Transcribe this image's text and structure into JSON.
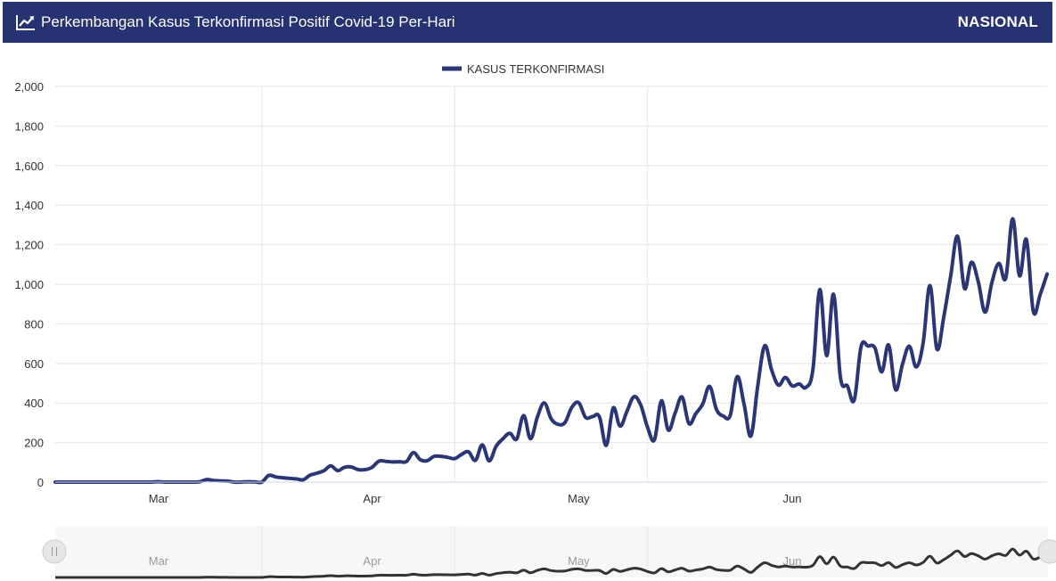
{
  "header": {
    "title": "Perkembangan Kasus Terkonfirmasi Positif Covid-19 Per-Hari",
    "scope": "NASIONAL",
    "icon": "line-chart-icon"
  },
  "colors": {
    "header_bg": "#263272",
    "series": "#2b3674",
    "navigator_series": "#333333",
    "grid": "#e0e0e0"
  },
  "chart_data": {
    "type": "line",
    "title": "",
    "xlabel": "",
    "ylabel": "",
    "ylim": [
      0,
      2000
    ],
    "yticks": [
      0,
      200,
      400,
      600,
      800,
      1000,
      1200,
      1400,
      1600,
      1800,
      2000
    ],
    "ytick_labels": [
      "0",
      "200",
      "400",
      "600",
      "800",
      "1,000",
      "1,200",
      "1,400",
      "1,600",
      "1,800",
      "2,000"
    ],
    "x_month_labels": [
      "Mar",
      "Apr",
      "May",
      "Jun"
    ],
    "grid": true,
    "legend": {
      "placement": "top-center",
      "entries": [
        "KASUS TERKONFIRMASI"
      ]
    },
    "navigator": true,
    "series": [
      {
        "name": "KASUS TERKONFIRMASI",
        "start_date": "2020-02-15",
        "values": [
          0,
          0,
          0,
          0,
          0,
          0,
          0,
          0,
          0,
          0,
          0,
          0,
          0,
          0,
          0,
          2,
          0,
          0,
          0,
          0,
          0,
          2,
          13,
          8,
          6,
          5,
          0,
          0,
          2,
          1,
          0,
          34,
          26,
          22,
          19,
          16,
          12,
          35,
          45,
          57,
          82,
          58,
          75,
          76,
          63,
          63,
          75,
          106,
          105,
          102,
          103,
          104,
          149,
          113,
          108,
          130,
          130,
          125,
          119,
          140,
          153,
          110,
          188,
          107,
          181,
          219,
          247,
          218,
          337,
          219,
          329,
          400,
          320,
          292,
          301,
          378,
          401,
          327,
          331,
          330,
          186,
          375,
          283,
          357,
          431,
          389,
          276,
          214,
          411,
          263,
          349,
          430,
          296,
          346,
          394,
          484,
          367,
          334,
          338,
          533,
          395,
          233,
          489,
          689,
          568,
          490,
          529,
          486,
          496,
          479,
          568,
          973,
          639,
          949,
          529,
          486,
          415,
          686,
          688,
          678,
          557,
          693,
          467,
          595,
          687,
          582,
          703,
          993,
          673,
          835,
          1041,
          1243,
          979,
          1111,
          1014,
          859,
          1011,
          1106,
          1031,
          1331,
          1043,
          1226,
          863,
          949,
          1052
        ]
      }
    ]
  }
}
